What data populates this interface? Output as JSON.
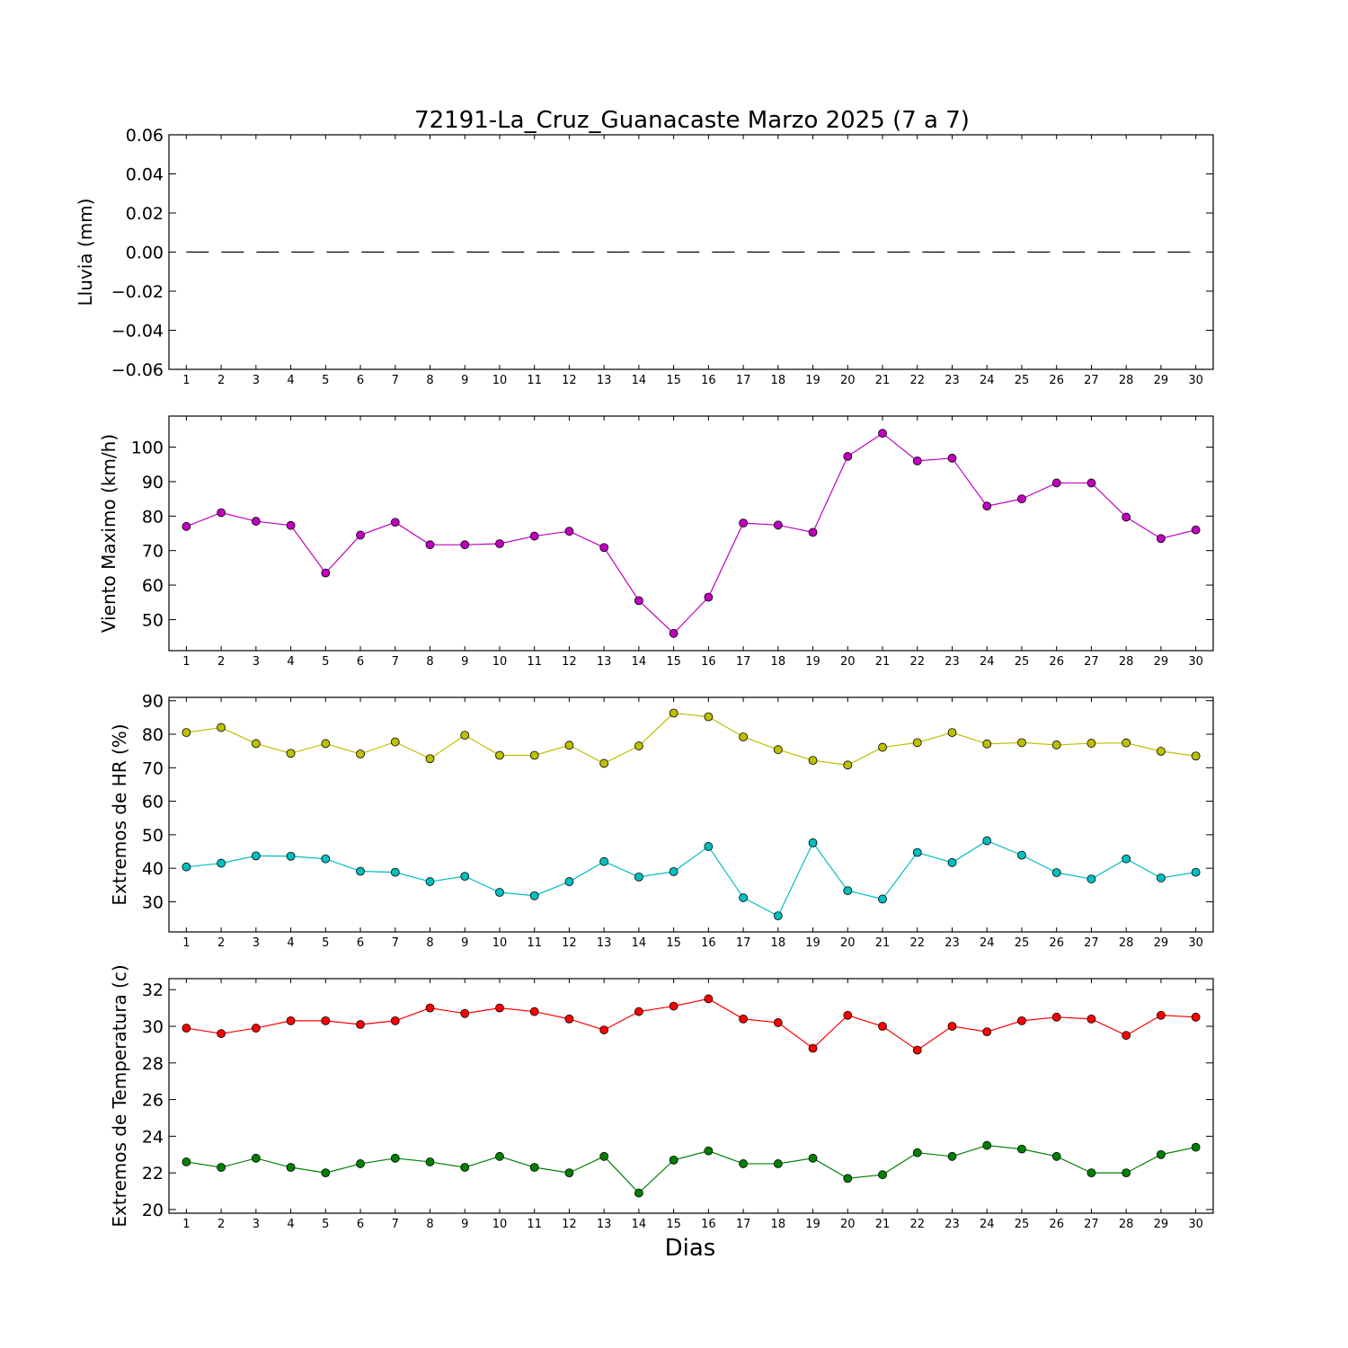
{
  "chart_data": {
    "type": "line",
    "title": "72191-La_Cruz_Guanacaste Marzo 2025  (7 a 7)",
    "xlabel": "Dias",
    "x": [
      1,
      2,
      3,
      4,
      5,
      6,
      7,
      8,
      9,
      10,
      11,
      12,
      13,
      14,
      15,
      16,
      17,
      18,
      19,
      20,
      21,
      22,
      23,
      24,
      25,
      26,
      27,
      28,
      29,
      30
    ],
    "xlim": [
      0.5,
      30.5
    ],
    "panels": [
      {
        "ylabel": "Lluvia (mm)",
        "ylim": [
          -0.06,
          0.06
        ],
        "yticks": [
          -0.06,
          -0.04,
          -0.02,
          0.0,
          0.02,
          0.04,
          0.06
        ],
        "ytick_labels": [
          "−0.06",
          "−0.04",
          "−0.02",
          "0.00",
          "0.02",
          "0.04",
          "0.06"
        ],
        "series": [
          {
            "color": "#000000",
            "style": "dashed",
            "marker": false,
            "values": [
              0,
              0,
              0,
              0,
              0,
              0,
              0,
              0,
              0,
              0,
              0,
              0,
              0,
              0,
              0,
              0,
              0,
              0,
              0,
              0,
              0,
              0,
              0,
              0,
              0,
              0,
              0,
              0,
              0,
              0
            ]
          }
        ]
      },
      {
        "ylabel": "Viento Maximo (km/h)",
        "ylim": [
          41,
          109
        ],
        "yticks": [
          50,
          60,
          70,
          80,
          90,
          100
        ],
        "ytick_labels": [
          "50",
          "60",
          "70",
          "80",
          "90",
          "100"
        ],
        "series": [
          {
            "color": "#bf00bf",
            "style": "solid",
            "marker": true,
            "values": [
              77,
              81,
              78.5,
              77.3,
              63.5,
              74.5,
              78.2,
              71.7,
              71.7,
              72,
              74.2,
              75.6,
              70.9,
              55.5,
              46,
              56.5,
              78,
              77.4,
              75.3,
              97.3,
              104,
              96,
              96.8,
              82.9,
              85,
              89.6,
              89.6,
              79.7,
              73.5,
              76
            ]
          }
        ]
      },
      {
        "ylabel": "Extremos de HR (%)",
        "ylim": [
          21,
          91
        ],
        "yticks": [
          30,
          40,
          50,
          60,
          70,
          80,
          90
        ],
        "ytick_labels": [
          "30",
          "40",
          "50",
          "60",
          "70",
          "80",
          "90"
        ],
        "series": [
          {
            "color": "#bfbf00",
            "style": "solid",
            "marker": true,
            "values": [
              80.5,
              82,
              77.2,
              74.3,
              77.2,
              74.1,
              77.7,
              72.7,
              79.7,
              73.7,
              73.7,
              76.7,
              71.3,
              76.5,
              86.3,
              85.2,
              79.2,
              75.4,
              72.2,
              70.8,
              76.1,
              77.5,
              80.5,
              77.1,
              77.5,
              76.8,
              77.3,
              77.4,
              74.9,
              73.5
            ]
          },
          {
            "color": "#00bfbf",
            "style": "solid",
            "marker": true,
            "values": [
              40.4,
              41.5,
              43.7,
              43.6,
              42.8,
              39.1,
              38.8,
              36,
              37.6,
              32.8,
              31.8,
              36,
              42,
              37.4,
              39,
              46.5,
              31.2,
              25.8,
              47.6,
              33.3,
              30.8,
              44.7,
              41.7,
              48.2,
              43.9,
              38.7,
              36.8,
              42.8,
              37.1,
              38.8
            ]
          }
        ]
      },
      {
        "ylabel": "Extremos de Temperatura (c)",
        "ylim": [
          19.8,
          32.6
        ],
        "yticks": [
          20,
          22,
          24,
          26,
          28,
          30,
          32
        ],
        "ytick_labels": [
          "20",
          "22",
          "24",
          "26",
          "28",
          "30",
          "32"
        ],
        "series": [
          {
            "color": "#ff0000",
            "style": "solid",
            "marker": true,
            "values": [
              29.9,
              29.6,
              29.9,
              30.3,
              30.3,
              30.1,
              30.3,
              31,
              30.7,
              31,
              30.8,
              30.4,
              29.8,
              30.8,
              31.1,
              31.5,
              30.4,
              30.2,
              28.8,
              30.6,
              30,
              28.7,
              30,
              29.7,
              30.3,
              30.5,
              30.4,
              29.5,
              30.6,
              30.5
            ]
          },
          {
            "color": "#008000",
            "style": "solid",
            "marker": true,
            "values": [
              22.6,
              22.3,
              22.8,
              22.3,
              22,
              22.5,
              22.8,
              22.6,
              22.3,
              22.9,
              22.3,
              22,
              22.9,
              20.9,
              22.7,
              23.2,
              22.5,
              22.5,
              22.8,
              21.7,
              21.9,
              23.1,
              22.9,
              23.5,
              23.3,
              22.9,
              22,
              22,
              23,
              23.4
            ]
          }
        ]
      }
    ]
  }
}
